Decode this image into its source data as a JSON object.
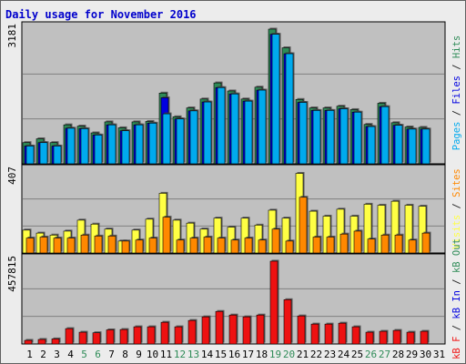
{
  "colors": {
    "frame_bg": "#ECECEC",
    "panel_bg": "#C0C0C0",
    "title": "#0000CC",
    "pages": "#00AAEE",
    "pages_dark": "#205070",
    "files": "#0000E0",
    "hits": "#2E8B57",
    "visits": "#FFFF44",
    "sites": "#FF8800",
    "kb": "#EE1111",
    "weekend_label": "#2E8B57"
  },
  "chart_data": [
    {
      "type": "bar",
      "title": "Daily usage for November 2016",
      "categories": [
        "1",
        "2",
        "3",
        "4",
        "5",
        "6",
        "7",
        "8",
        "9",
        "10",
        "11",
        "12",
        "13",
        "14",
        "15",
        "16",
        "17",
        "18",
        "19",
        "20",
        "21",
        "22",
        "23",
        "24",
        "25",
        "26",
        "27",
        "28",
        "29",
        "30",
        "31"
      ],
      "weekend_days": [
        "5",
        "6",
        "12",
        "13",
        "19",
        "20",
        "26",
        "27"
      ],
      "panel": "top",
      "ylim": [
        0,
        3181
      ],
      "ytick_label": "3181",
      "axis_label_parts": [
        {
          "text": "Pages",
          "color": "#00AAEE"
        },
        {
          "text": " / ",
          "color": "#202020"
        },
        {
          "text": "Files",
          "color": "#0000E0"
        },
        {
          "text": " / ",
          "color": "#202020"
        },
        {
          "text": "Hits",
          "color": "#2E8B57"
        }
      ],
      "series": [
        {
          "name": "Hits",
          "values": [
            500,
            590,
            500,
            920,
            890,
            730,
            990,
            850,
            990,
            1000,
            1670,
            1110,
            1320,
            1530,
            1910,
            1720,
            1530,
            1810,
            3181,
            2740,
            1520,
            1320,
            1320,
            1360,
            1280,
            930,
            1430,
            970,
            870,
            860,
            0
          ]
        },
        {
          "name": "Files",
          "values": [
            420,
            500,
            420,
            840,
            830,
            680,
            920,
            780,
            920,
            960,
            1560,
            1060,
            1250,
            1460,
            1800,
            1650,
            1480,
            1740,
            3060,
            2600,
            1450,
            1260,
            1260,
            1300,
            1220,
            880,
            1350,
            910,
            820,
            820,
            0
          ]
        },
        {
          "name": "Pages",
          "values": [
            420,
            500,
            420,
            840,
            830,
            680,
            920,
            780,
            920,
            960,
            1180,
            1060,
            1250,
            1460,
            1800,
            1650,
            1480,
            1740,
            3060,
            2600,
            1450,
            1260,
            1260,
            1300,
            1220,
            880,
            1350,
            910,
            820,
            820,
            0
          ]
        }
      ]
    },
    {
      "type": "bar",
      "panel": "middle",
      "categories": [
        "1",
        "2",
        "3",
        "4",
        "5",
        "6",
        "7",
        "8",
        "9",
        "10",
        "11",
        "12",
        "13",
        "14",
        "15",
        "16",
        "17",
        "18",
        "19",
        "20",
        "21",
        "22",
        "23",
        "24",
        "25",
        "26",
        "27",
        "28",
        "29",
        "30",
        "31"
      ],
      "ylim": [
        0,
        407
      ],
      "ytick_label": "407",
      "axis_label_parts": [
        {
          "text": "Visits",
          "color": "#FFFF44"
        },
        {
          "text": " / ",
          "color": "#202020"
        },
        {
          "text": "Sites",
          "color": "#FF8800"
        }
      ],
      "series": [
        {
          "name": "Visits",
          "values": [
            115,
            100,
            90,
            110,
            165,
            145,
            120,
            60,
            115,
            170,
            300,
            165,
            150,
            120,
            175,
            130,
            175,
            140,
            215,
            175,
            400,
            210,
            185,
            220,
            185,
            245,
            240,
            260,
            240,
            235,
            0
          ]
        },
        {
          "name": "Sites",
          "values": [
            75,
            80,
            75,
            75,
            90,
            85,
            85,
            60,
            65,
            75,
            180,
            65,
            75,
            80,
            75,
            65,
            75,
            65,
            120,
            60,
            280,
            80,
            80,
            95,
            110,
            70,
            90,
            90,
            65,
            100,
            0
          ]
        }
      ]
    },
    {
      "type": "bar",
      "panel": "bottom",
      "categories": [
        "1",
        "2",
        "3",
        "4",
        "5",
        "6",
        "7",
        "8",
        "9",
        "10",
        "11",
        "12",
        "13",
        "14",
        "15",
        "16",
        "17",
        "18",
        "19",
        "20",
        "21",
        "22",
        "23",
        "24",
        "25",
        "26",
        "27",
        "28",
        "29",
        "30",
        "31"
      ],
      "ylim": [
        0,
        457815
      ],
      "ytick_label": "457815",
      "axis_label_parts": [
        {
          "text": "kB F",
          "color": "#EE1111"
        },
        {
          "text": " / ",
          "color": "#202020"
        },
        {
          "text": "kB In",
          "color": "#0000E0"
        },
        {
          "text": " / ",
          "color": "#202020"
        },
        {
          "text": "kB Out",
          "color": "#2E8B57"
        }
      ],
      "series": [
        {
          "name": "kB F",
          "values": [
            20000,
            25000,
            28000,
            85000,
            65000,
            62000,
            78000,
            80000,
            95000,
            95000,
            120000,
            95000,
            130000,
            150000,
            180000,
            160000,
            150000,
            160000,
            457815,
            245000,
            155000,
            110000,
            110000,
            115000,
            95000,
            65000,
            70000,
            75000,
            65000,
            70000,
            0
          ]
        }
      ]
    }
  ]
}
